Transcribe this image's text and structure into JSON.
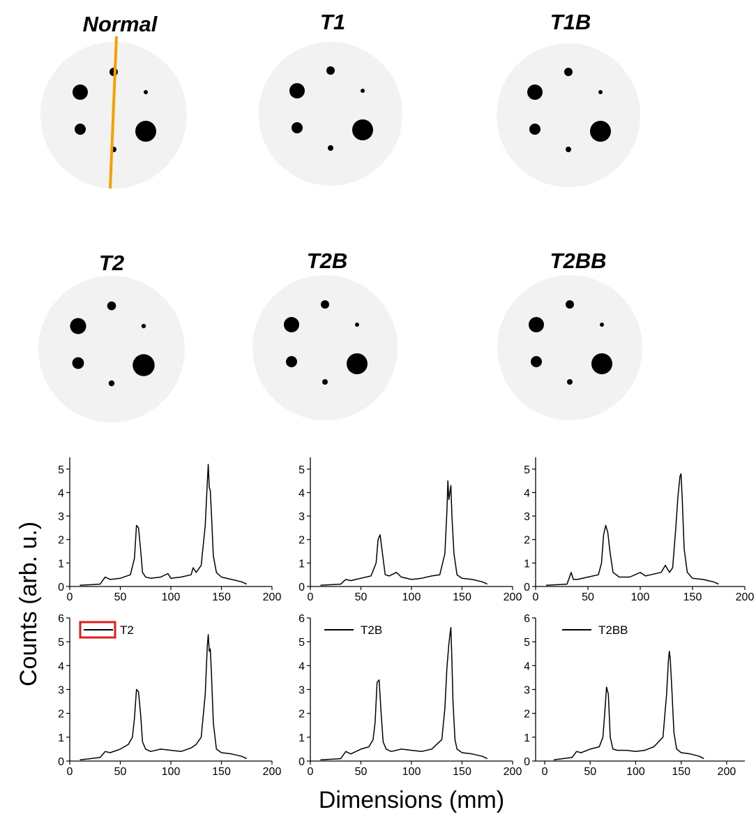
{
  "colors": {
    "image_background": "#f2f2f2",
    "spot": "#000000",
    "profile_line": "#f4a100",
    "legend_box": "#e01b1b",
    "curve": "#000000"
  },
  "image_titles": [
    "Normal",
    "T1",
    "T1B",
    "T2",
    "T2B",
    "T2BB"
  ],
  "axis_titles": {
    "y": "Counts (arb. u.)",
    "x": "Dimensions (mm)"
  },
  "chart_data": [
    {
      "type": "line",
      "xlabel": "",
      "ylabel": "",
      "xlim": [
        0,
        200
      ],
      "ylim": [
        0,
        5.5
      ],
      "x_ticks": [
        0,
        50,
        100,
        150,
        200
      ],
      "y_ticks": [
        0,
        1,
        2,
        3,
        4,
        5
      ],
      "series": [
        {
          "x": [
            10,
            30,
            35,
            40,
            50,
            60,
            64,
            66,
            68,
            70,
            72,
            75,
            80,
            90,
            97,
            100,
            110,
            120,
            122,
            125,
            130,
            134,
            136,
            137,
            138,
            139,
            140,
            142,
            145,
            150,
            160,
            170,
            175
          ],
          "y": [
            0.05,
            0.1,
            0.4,
            0.3,
            0.35,
            0.5,
            1.2,
            2.6,
            2.5,
            1.6,
            0.6,
            0.4,
            0.35,
            0.4,
            0.55,
            0.35,
            0.4,
            0.5,
            0.8,
            0.6,
            0.9,
            2.6,
            4.4,
            5.2,
            4.2,
            4.1,
            3.2,
            1.3,
            0.6,
            0.4,
            0.3,
            0.2,
            0.1
          ]
        }
      ]
    },
    {
      "type": "line",
      "xlabel": "",
      "ylabel": "",
      "xlim": [
        0,
        200
      ],
      "ylim": [
        0,
        5.5
      ],
      "x_ticks": [
        0,
        50,
        100,
        150,
        200
      ],
      "y_ticks": [
        0,
        1,
        2,
        3,
        4,
        5
      ],
      "series": [
        {
          "x": [
            10,
            30,
            35,
            40,
            50,
            60,
            65,
            67,
            69,
            71,
            74,
            78,
            85,
            90,
            100,
            110,
            120,
            128,
            133,
            135,
            136,
            137,
            138,
            139,
            140,
            142,
            145,
            150,
            160,
            170,
            175
          ],
          "y": [
            0.05,
            0.1,
            0.3,
            0.25,
            0.35,
            0.45,
            1.0,
            2.0,
            2.2,
            1.5,
            0.5,
            0.45,
            0.6,
            0.4,
            0.3,
            0.35,
            0.45,
            0.5,
            1.4,
            3.2,
            4.5,
            3.7,
            4.0,
            4.3,
            3.0,
            1.4,
            0.5,
            0.35,
            0.3,
            0.2,
            0.1
          ]
        }
      ]
    },
    {
      "type": "line",
      "xlabel": "",
      "ylabel": "",
      "xlim": [
        0,
        200
      ],
      "ylim": [
        0,
        5.5
      ],
      "x_ticks": [
        0,
        50,
        100,
        150,
        200
      ],
      "y_ticks": [
        0,
        1,
        2,
        3,
        4,
        5
      ],
      "series": [
        {
          "x": [
            10,
            30,
            34,
            36,
            40,
            50,
            60,
            63,
            65,
            67,
            69,
            71,
            74,
            80,
            90,
            100,
            105,
            110,
            120,
            124,
            128,
            131,
            134,
            136,
            138,
            139,
            140,
            142,
            145,
            150,
            160,
            170,
            175
          ],
          "y": [
            0.05,
            0.1,
            0.6,
            0.3,
            0.3,
            0.4,
            0.5,
            1.0,
            2.2,
            2.6,
            2.3,
            1.5,
            0.6,
            0.4,
            0.4,
            0.6,
            0.45,
            0.5,
            0.6,
            0.9,
            0.6,
            0.8,
            2.5,
            3.8,
            4.7,
            4.8,
            3.9,
            1.6,
            0.6,
            0.35,
            0.3,
            0.2,
            0.1
          ]
        }
      ]
    },
    {
      "type": "line",
      "xlabel": "",
      "ylabel": "",
      "xlim": [
        0,
        200
      ],
      "ylim": [
        0,
        6
      ],
      "x_ticks": [
        0,
        50,
        100,
        150,
        200
      ],
      "y_ticks": [
        0,
        1,
        2,
        3,
        4,
        5,
        6
      ],
      "legend": "T2",
      "series": [
        {
          "name": "T2",
          "x": [
            10,
            30,
            35,
            40,
            50,
            58,
            62,
            64,
            66,
            68,
            70,
            72,
            75,
            80,
            90,
            100,
            110,
            120,
            125,
            130,
            134,
            136,
            137,
            138,
            139,
            140,
            142,
            145,
            150,
            160,
            170,
            175
          ],
          "y": [
            0.05,
            0.15,
            0.4,
            0.35,
            0.5,
            0.7,
            1.0,
            1.8,
            3.0,
            2.9,
            2.0,
            0.8,
            0.5,
            0.4,
            0.5,
            0.45,
            0.4,
            0.55,
            0.7,
            1.0,
            2.8,
            4.8,
            5.3,
            4.6,
            4.7,
            3.8,
            1.6,
            0.5,
            0.35,
            0.3,
            0.2,
            0.1
          ]
        }
      ]
    },
    {
      "type": "line",
      "xlabel": "",
      "ylabel": "",
      "xlim": [
        0,
        200
      ],
      "ylim": [
        0,
        6
      ],
      "x_ticks": [
        0,
        50,
        100,
        150,
        200
      ],
      "y_ticks": [
        0,
        1,
        2,
        3,
        4,
        5,
        6
      ],
      "legend": "T2B",
      "series": [
        {
          "name": "T2B",
          "x": [
            10,
            30,
            35,
            40,
            50,
            58,
            62,
            64,
            66,
            68,
            70,
            72,
            75,
            80,
            90,
            100,
            110,
            120,
            125,
            130,
            133,
            135,
            137,
            138,
            139,
            140,
            141,
            143,
            145,
            150,
            160,
            170,
            175
          ],
          "y": [
            0.05,
            0.1,
            0.4,
            0.3,
            0.5,
            0.6,
            0.9,
            1.6,
            3.3,
            3.4,
            2.0,
            0.8,
            0.5,
            0.4,
            0.5,
            0.45,
            0.4,
            0.5,
            0.7,
            0.9,
            2.2,
            3.9,
            4.9,
            5.3,
            5.6,
            4.2,
            2.5,
            0.9,
            0.5,
            0.35,
            0.3,
            0.2,
            0.1
          ]
        }
      ]
    },
    {
      "type": "line",
      "xlabel": "",
      "ylabel": "",
      "xlim": [
        -10,
        220
      ],
      "ylim": [
        0,
        6
      ],
      "x_ticks": [
        0,
        50,
        100,
        150,
        200
      ],
      "y_ticks": [
        0,
        1,
        2,
        3,
        4,
        5,
        6
      ],
      "legend": "T2BB",
      "series": [
        {
          "name": "T2BB",
          "x": [
            10,
            30,
            35,
            40,
            50,
            60,
            64,
            66,
            68,
            70,
            72,
            75,
            80,
            90,
            100,
            110,
            120,
            125,
            130,
            134,
            136,
            137,
            138,
            139,
            140,
            142,
            145,
            150,
            160,
            170,
            175
          ],
          "y": [
            0.05,
            0.15,
            0.4,
            0.35,
            0.5,
            0.6,
            1.0,
            2.0,
            3.1,
            2.8,
            1.0,
            0.5,
            0.45,
            0.45,
            0.4,
            0.45,
            0.6,
            0.8,
            1.0,
            2.8,
            4.2,
            4.6,
            4.3,
            3.6,
            2.8,
            1.2,
            0.5,
            0.35,
            0.3,
            0.2,
            0.1
          ]
        }
      ]
    }
  ]
}
